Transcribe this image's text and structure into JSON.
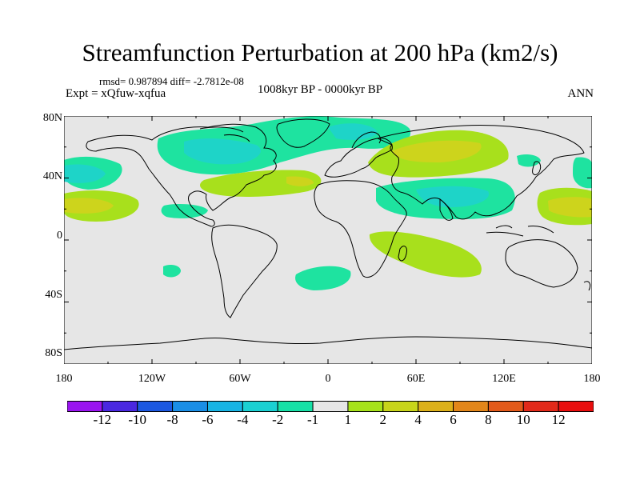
{
  "title": "Streamfunction Perturbation at 200 hPa (km2/s)",
  "stats": "rmsd= 0.987894 diff= -2.7812e-08",
  "experiment": "Expt = xQfuw-xqfua",
  "period": "1008kyr BP - 0000kyr BP",
  "season": "ANN",
  "y_axis_labels": [
    "80N",
    "40N",
    "0",
    "40S",
    "80S"
  ],
  "x_axis_labels": [
    "180",
    "120W",
    "60W",
    "0",
    "60E",
    "120E",
    "180"
  ],
  "colorbar": {
    "labels": [
      "-12",
      "-10",
      "-8",
      "-6",
      "-4",
      "-2",
      "-1",
      "1",
      "2",
      "4",
      "6",
      "8",
      "10",
      "12"
    ],
    "colors": [
      "#9a14f0",
      "#4a28e0",
      "#1c58e0",
      "#1a8ee6",
      "#18b4e4",
      "#1ad0d2",
      "#16e0a6",
      "#e6e6e6",
      "#a6e21a",
      "#c8d41a",
      "#dcb01a",
      "#e2861a",
      "#e25a1a",
      "#e22a1a",
      "#e80e0e"
    ]
  },
  "map_background": "#e6e6e6",
  "contour_colors": {
    "neg_weak": "#1ee3a0",
    "neg_mid": "#1ed4c8",
    "pos_weak": "#a8e01c",
    "pos_mid": "#cdd41c"
  }
}
